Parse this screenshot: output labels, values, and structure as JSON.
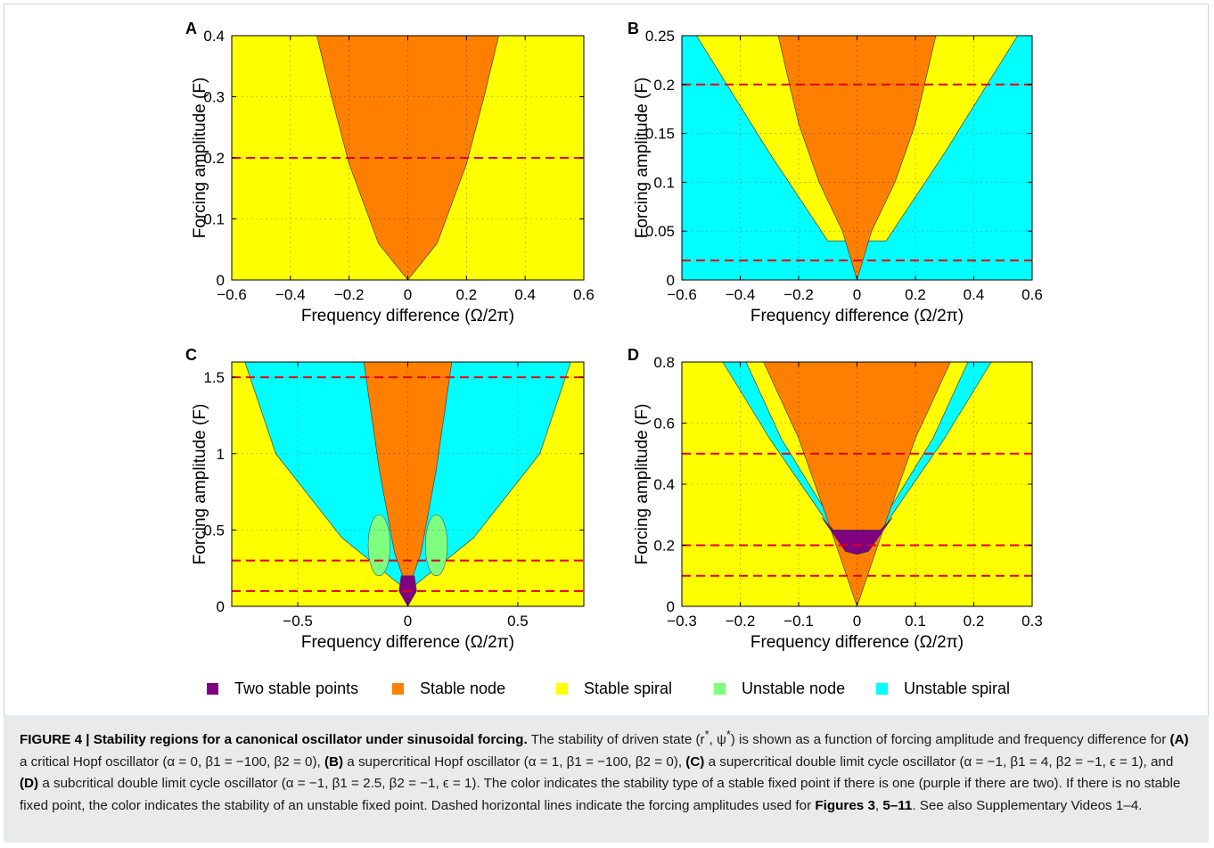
{
  "figure": {
    "legend": [
      {
        "label": "Two stable points",
        "color": "#800080"
      },
      {
        "label": "Stable node",
        "color": "#ff7f00"
      },
      {
        "label": "Stable spiral",
        "color": "#ffff00"
      },
      {
        "label": "Unstable node",
        "color": "#7fff7f"
      },
      {
        "label": "Unstable spiral",
        "color": "#00ffff"
      }
    ],
    "caption": {
      "lead": "FIGURE 4 | Stability regions for a canonical oscillator under sinusoidal forcing.",
      "s1": "The stability of driven state (r",
      "s1_sup1": "*",
      "s1_mid": ", ψ",
      "s1_sup2": "*",
      "s2": ") is shown as a function of forcing amplitude and frequency difference for ",
      "refA": "(A)",
      "tA": " a critical Hopf oscillator (α = 0, β",
      "tA_b": ", β",
      "tA_end": "1 = −100, β2 = 0), ",
      "refB": "(B)",
      "tB": " a supercritical Hopf oscillator (α = 1, β1 = −100, β2 = 0), ",
      "refC": "(C)",
      "tC": " a supercritical double limit cycle oscillator (α = −1, β1 = 4, β2 = −1, ϵ = 1), and ",
      "refD": "(D)",
      "tD": " a subcritical double limit cycle oscillator (α = −1, β1 = 2.5, β2 = −1, ϵ = 1). The color indicates the stability type of a stable fixed point if there is one (purple if there are two). If there is no stable fixed point, the color indicates the stability of an unstable fixed point. Dashed horizontal lines indicate the forcing amplitudes used for ",
      "figs1": "Figures 3",
      "comma": ", ",
      "figs2": "5–11",
      "tail": ". See also Supplementary Videos 1–4."
    }
  },
  "chart_data": [
    {
      "type": "heatmap",
      "panel": "A",
      "xlabel": "Frequency difference (Ω/2π)",
      "ylabel": "Forcing amplitude (F)",
      "xlim": [
        -0.6,
        0.6
      ],
      "ylim": [
        0,
        0.4
      ],
      "xticks": [
        -0.6,
        -0.4,
        -0.2,
        0,
        0.2,
        0.4,
        0.6
      ],
      "xtick_labels": [
        "−0.6",
        "−0.4",
        "−0.2",
        "0",
        "0.2",
        "0.4",
        "0.6"
      ],
      "yticks": [
        0,
        0.1,
        0.2,
        0.3,
        0.4
      ],
      "ytick_labels": [
        "0",
        "0.1",
        "0.2",
        "0.3",
        "0.4"
      ],
      "grid": true,
      "background": "#ffff00",
      "regions": [
        {
          "category": "Stable node",
          "color": "#ff7f00",
          "left": [
            [
              0,
              0
            ],
            [
              -0.1,
              0.06
            ],
            [
              -0.2,
              0.19
            ],
            [
              -0.26,
              0.3
            ],
            [
              -0.31,
              0.4
            ]
          ],
          "right": [
            [
              0,
              0
            ],
            [
              0.1,
              0.06
            ],
            [
              0.2,
              0.19
            ],
            [
              0.26,
              0.3
            ],
            [
              0.31,
              0.4
            ]
          ]
        }
      ],
      "dashed_lines": [
        0.2
      ]
    },
    {
      "type": "heatmap",
      "panel": "B",
      "xlabel": "Frequency difference (Ω/2π)",
      "ylabel": "Forcing amplitude (F)",
      "xlim": [
        -0.6,
        0.6
      ],
      "ylim": [
        0,
        0.25
      ],
      "xticks": [
        -0.6,
        -0.4,
        -0.2,
        0,
        0.2,
        0.4,
        0.6
      ],
      "xtick_labels": [
        "−0.6",
        "−0.4",
        "−0.2",
        "0",
        "0.2",
        "0.4",
        "0.6"
      ],
      "yticks": [
        0,
        0.05,
        0.1,
        0.15,
        0.2,
        0.25
      ],
      "ytick_labels": [
        "0",
        "0.05",
        "0.1",
        "0.15",
        "0.2",
        "0.25"
      ],
      "grid": true,
      "background": "#00ffff",
      "regions": [
        {
          "category": "Stable spiral",
          "color": "#ffff00",
          "left": [
            [
              -0.1,
              0.04
            ],
            [
              -0.3,
              0.13
            ],
            [
              -0.55,
              0.25
            ]
          ],
          "right": [
            [
              0.1,
              0.04
            ],
            [
              0.3,
              0.13
            ],
            [
              0.55,
              0.25
            ]
          ]
        },
        {
          "category": "Stable node",
          "color": "#ff7f00",
          "left": [
            [
              0,
              0
            ],
            [
              -0.05,
              0.05
            ],
            [
              -0.13,
              0.1
            ],
            [
              -0.2,
              0.16
            ],
            [
              -0.27,
              0.25
            ]
          ],
          "right": [
            [
              0,
              0
            ],
            [
              0.05,
              0.05
            ],
            [
              0.13,
              0.1
            ],
            [
              0.2,
              0.16
            ],
            [
              0.27,
              0.25
            ]
          ]
        }
      ],
      "dashed_lines": [
        0.2,
        0.02
      ]
    },
    {
      "type": "heatmap",
      "panel": "C",
      "xlabel": "Frequency difference (Ω/2π)",
      "ylabel": "Forcing amplitude (F)",
      "xlim": [
        -0.8,
        0.8
      ],
      "ylim": [
        0,
        1.6
      ],
      "xticks": [
        -0.5,
        0,
        0.5
      ],
      "xtick_labels": [
        "−0.5",
        "0",
        "0.5"
      ],
      "yticks": [
        0,
        0.5,
        1,
        1.5
      ],
      "ytick_labels": [
        "0",
        "0.5",
        "1",
        "1.5"
      ],
      "grid": true,
      "background": "#ffff00",
      "regions": [
        {
          "category": "Unstable spiral",
          "color": "#00ffff",
          "left": [
            [
              0,
              0.1
            ],
            [
              -0.3,
              0.45
            ],
            [
              -0.6,
              1.0
            ],
            [
              -0.74,
              1.6
            ]
          ],
          "right": [
            [
              0,
              0.1
            ],
            [
              0.3,
              0.45
            ],
            [
              0.6,
              1.0
            ],
            [
              0.74,
              1.6
            ]
          ]
        },
        {
          "category": "Unstable node",
          "color": "#7fff7f",
          "ellipses": [
            {
              "cx": -0.13,
              "cy": 0.4,
              "rx": 0.05,
              "ry": 0.2
            },
            {
              "cx": 0.13,
              "cy": 0.4,
              "rx": 0.05,
              "ry": 0.2
            }
          ]
        },
        {
          "category": "Stable node",
          "color": "#ff7f00",
          "left": [
            [
              0,
              0.1
            ],
            [
              -0.06,
              0.35
            ],
            [
              -0.13,
              0.9
            ],
            [
              -0.17,
              1.3
            ],
            [
              -0.2,
              1.6
            ]
          ],
          "right": [
            [
              0,
              0.1
            ],
            [
              0.06,
              0.35
            ],
            [
              0.13,
              0.9
            ],
            [
              0.17,
              1.3
            ],
            [
              0.2,
              1.6
            ]
          ]
        },
        {
          "category": "Two stable points",
          "color": "#800080",
          "left": [
            [
              0,
              0
            ],
            [
              -0.04,
              0.1
            ],
            [
              -0.03,
              0.2
            ]
          ],
          "right": [
            [
              0,
              0
            ],
            [
              0.04,
              0.1
            ],
            [
              0.03,
              0.2
            ]
          ]
        }
      ],
      "dashed_lines": [
        1.5,
        0.3,
        0.1
      ]
    },
    {
      "type": "heatmap",
      "panel": "D",
      "xlabel": "Frequency difference (Ω/2π)",
      "ylabel": "Forcing amplitude (F)",
      "xlim": [
        -0.3,
        0.3
      ],
      "ylim": [
        0,
        0.8
      ],
      "xticks": [
        -0.3,
        -0.2,
        -0.1,
        0,
        0.1,
        0.2,
        0.3
      ],
      "xtick_labels": [
        "−0.3",
        "−0.2",
        "−0.1",
        "0",
        "0.1",
        "0.2",
        "0.3"
      ],
      "yticks": [
        0,
        0.2,
        0.4,
        0.6,
        0.8
      ],
      "ytick_labels": [
        "0",
        "0.2",
        "0.4",
        "0.6",
        "0.8"
      ],
      "grid": true,
      "background": "#ffff00",
      "regions": [
        {
          "category": "Unstable spiral",
          "color": "#00ffff",
          "left": [
            [
              0,
              0.1
            ],
            [
              -0.06,
              0.3
            ],
            [
              -0.15,
              0.55
            ],
            [
              -0.23,
              0.8
            ]
          ],
          "right": [
            [
              0,
              0.1
            ],
            [
              0.06,
              0.3
            ],
            [
              0.15,
              0.55
            ],
            [
              0.23,
              0.8
            ]
          ]
        },
        {
          "category": "Stable spiral",
          "color": "#ffff00",
          "left": [
            [
              0,
              0.12
            ],
            [
              -0.05,
              0.3
            ],
            [
              -0.13,
              0.55
            ],
            [
              -0.19,
              0.8
            ]
          ],
          "right": [
            [
              0,
              0.12
            ],
            [
              0.05,
              0.3
            ],
            [
              0.13,
              0.55
            ],
            [
              0.19,
              0.8
            ]
          ]
        },
        {
          "category": "Stable node",
          "color": "#ff7f00",
          "left": [
            [
              0,
              0.0
            ],
            [
              -0.05,
              0.28
            ],
            [
              -0.1,
              0.55
            ],
            [
              -0.16,
              0.8
            ]
          ],
          "right": [
            [
              0,
              0.0
            ],
            [
              0.05,
              0.28
            ],
            [
              0.1,
              0.55
            ],
            [
              0.16,
              0.8
            ]
          ]
        },
        {
          "category": "Two stable points",
          "color": "#800080",
          "shape": [
            [
              -0.06,
              0.29
            ],
            [
              -0.02,
              0.18
            ],
            [
              0,
              0.17
            ],
            [
              0.02,
              0.18
            ],
            [
              0.06,
              0.29
            ],
            [
              0.04,
              0.25
            ],
            [
              -0.04,
              0.25
            ]
          ]
        }
      ],
      "dashed_lines": [
        0.5,
        0.2,
        0.1
      ]
    }
  ]
}
